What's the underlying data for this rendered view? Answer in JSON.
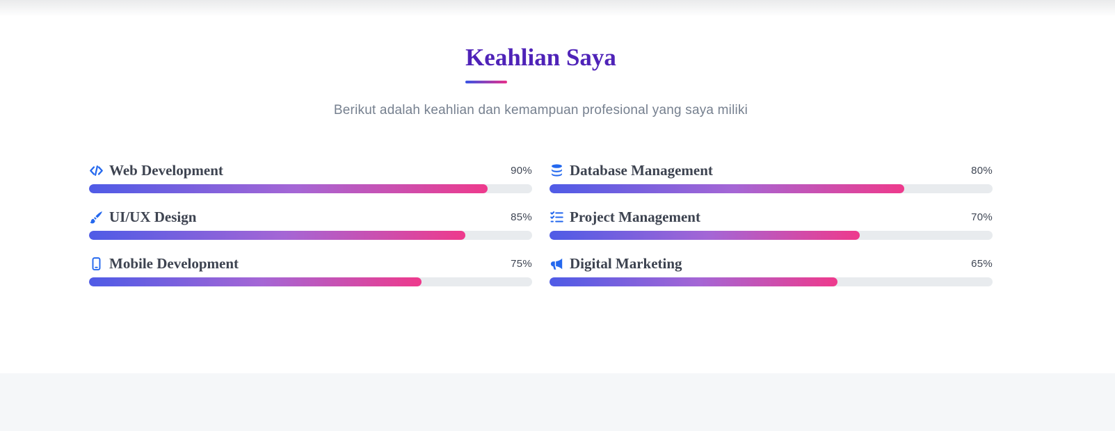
{
  "section": {
    "title": "Keahlian Saya",
    "subtitle": "Berikut adalah keahlian dan kemampuan profesional yang saya miliki"
  },
  "skills": [
    {
      "name": "Web Development",
      "icon": "code-icon",
      "percent": 90,
      "percent_label": "90%"
    },
    {
      "name": "UI/UX Design",
      "icon": "paint-brush-icon",
      "percent": 85,
      "percent_label": "85%"
    },
    {
      "name": "Mobile Development",
      "icon": "mobile-icon",
      "percent": 75,
      "percent_label": "75%"
    },
    {
      "name": "Database Management",
      "icon": "database-icon",
      "percent": 80,
      "percent_label": "80%"
    },
    {
      "name": "Project Management",
      "icon": "tasks-icon",
      "percent": 70,
      "percent_label": "70%"
    },
    {
      "name": "Digital Marketing",
      "icon": "megaphone-icon",
      "percent": 65,
      "percent_label": "65%"
    }
  ],
  "colors": {
    "title_purple": "#4f23b8",
    "icon_blue": "#2468ee",
    "bar_gradient_start": "#4f5be6",
    "bar_gradient_mid": "#a566d5",
    "bar_gradient_end": "#ee3a8c",
    "bar_track": "#e8ebee",
    "subtitle_gray": "#76808f",
    "footer_bg": "#f5f7f9"
  }
}
